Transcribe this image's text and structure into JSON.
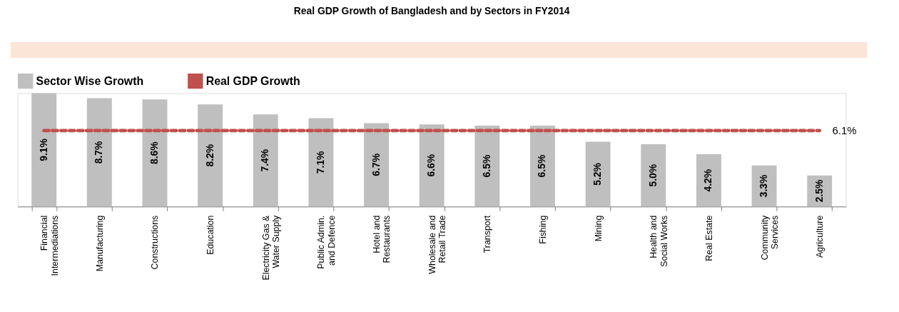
{
  "chart_data": {
    "type": "bar",
    "title": "Real GDP Growth of Bangladesh and by Sectors in FY2014",
    "categories": [
      "Financial\nIntermediations",
      "Manufacturing",
      "Constructions",
      "Education",
      "Electricity Gas &\nWater Supply",
      "Public Admin.\nand Defence",
      "Hotel and\nRestaurants",
      "Wholesale and\nRetail Trade",
      "Transport",
      "Fishing",
      "Mining",
      "Health and\nSocial Works",
      "Real Estate",
      "Community\nServices",
      "Agriculture"
    ],
    "series": [
      {
        "name": "Sector Wise Growth",
        "color": "#bfbfbf",
        "values": [
          9.1,
          8.7,
          8.6,
          8.2,
          7.4,
          7.1,
          6.7,
          6.6,
          6.5,
          6.5,
          5.2,
          5.0,
          4.2,
          3.3,
          2.5
        ],
        "value_labels": [
          "9.1%",
          "8.7%",
          "8.6%",
          "8.2%",
          "7.4%",
          "7.1%",
          "6.7%",
          "6.6%",
          "6.5%",
          "6.5%",
          "5.2%",
          "5.0%",
          "4.2%",
          "3.3%",
          "2.5%"
        ]
      },
      {
        "name": "Real GDP Growth",
        "type": "line",
        "color": "#c0504d",
        "line_style": "dashed",
        "values": [
          6.1,
          6.1,
          6.1,
          6.1,
          6.1,
          6.1,
          6.1,
          6.1,
          6.1,
          6.1,
          6.1,
          6.1,
          6.1,
          6.1,
          6.1
        ],
        "value_labels": [
          null,
          null,
          null,
          null,
          null,
          null,
          null,
          null,
          null,
          null,
          null,
          null,
          null,
          null,
          "6.1%"
        ]
      }
    ],
    "legend": "top",
    "grid": false,
    "tick_labels": "x"
  }
}
